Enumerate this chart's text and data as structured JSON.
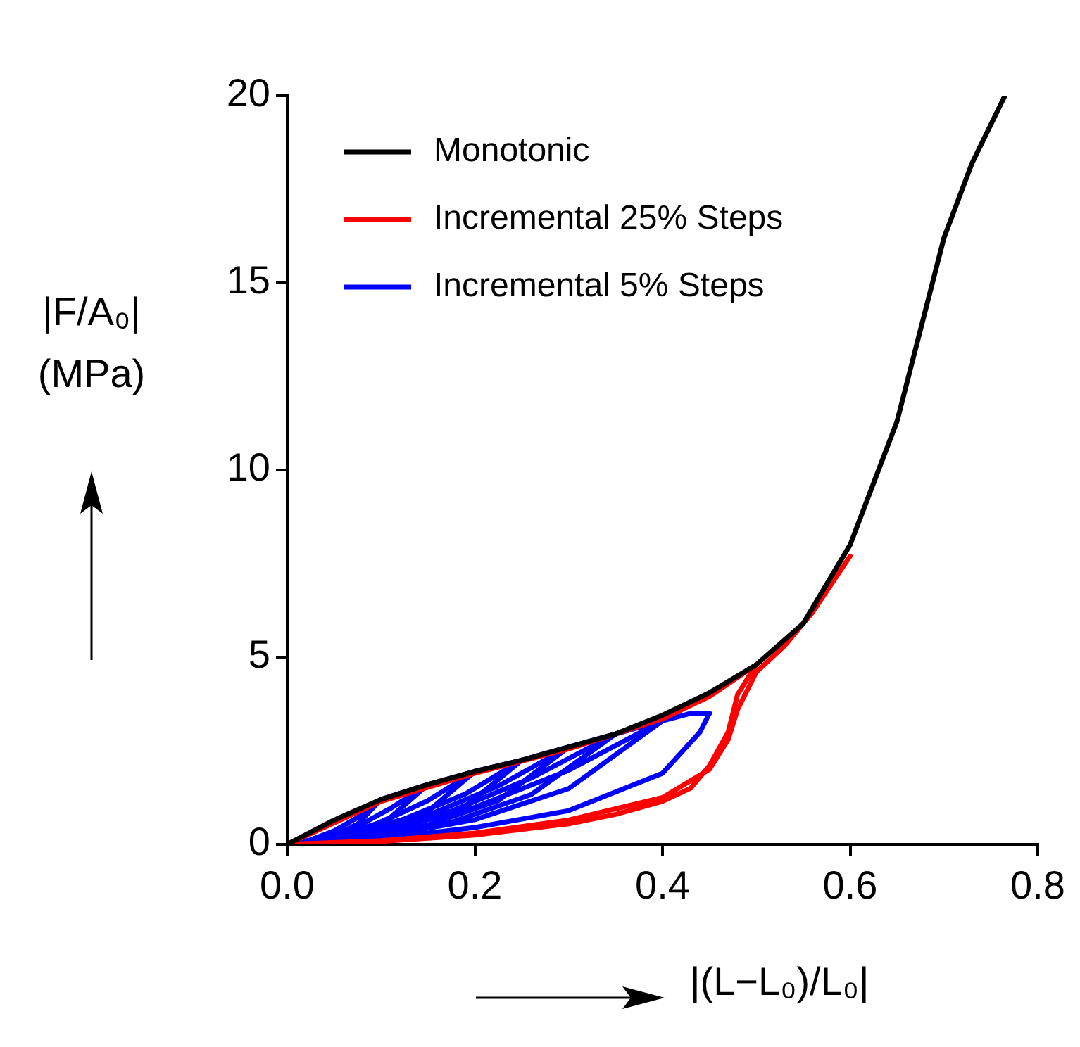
{
  "chart_data": {
    "type": "line",
    "xlabel": "|(L−L₀)/L₀|",
    "ylabel": "|F/A₀| (MPa)",
    "xlim": [
      0,
      0.8
    ],
    "ylim": [
      0,
      20
    ],
    "xticks": [
      {
        "value": 0,
        "label": "0.0"
      },
      0.2,
      0.4,
      0.6,
      0.8
    ],
    "yticks": [
      0,
      5,
      10,
      15,
      20
    ],
    "grid": false,
    "legend": "top left",
    "marker": "none",
    "line_style": "solid",
    "series": [
      {
        "name": "Monotonic",
        "color": "#000000",
        "x": [
          0,
          0.05,
          0.1,
          0.15,
          0.2,
          0.25,
          0.3,
          0.35,
          0.4,
          0.45,
          0.5,
          0.55,
          0.6,
          0.65,
          0.7,
          0.73,
          0.765
        ],
        "values": [
          0,
          0.65,
          1.2,
          1.6,
          1.95,
          2.25,
          2.6,
          2.95,
          3.45,
          4.05,
          4.8,
          5.9,
          8.0,
          11.3,
          16.2,
          18.2,
          20
        ]
      },
      {
        "name": "Incremental 25% Steps",
        "color": "#ff0000",
        "x": [
          0,
          0.1,
          0.2,
          0.3,
          0.4,
          0.45,
          0.5
        ],
        "values": [
          0,
          1.15,
          1.9,
          2.55,
          3.35,
          3.95,
          4.8
        ]
      },
      {
        "color": "#ff0000",
        "x": [
          0,
          0.1,
          0.2,
          0.3,
          0.35,
          0.4,
          0.43,
          0.45,
          0.47,
          0.48,
          0.5
        ],
        "values": [
          0,
          0.08,
          0.25,
          0.55,
          0.8,
          1.15,
          1.5,
          2.1,
          3.0,
          4.0,
          4.8
        ]
      },
      {
        "color": "#ff0000",
        "x": [
          0,
          0.1,
          0.2,
          0.3,
          0.4,
          0.45,
          0.47,
          0.48,
          0.5,
          0.53,
          0.56,
          0.6
        ],
        "values": [
          0,
          0.1,
          0.3,
          0.65,
          1.25,
          2.0,
          2.8,
          3.6,
          4.6,
          5.3,
          6.2,
          7.7
        ]
      },
      {
        "color": "#0000ff",
        "x": [
          0,
          0.025,
          0.05,
          0.075,
          0.1
        ],
        "values": [
          0,
          0.07,
          0.24,
          0.54,
          1.2
        ]
      },
      {
        "color": "#0000ff",
        "x": [
          0,
          0.025,
          0.05,
          0.075,
          0.1,
          0.15
        ],
        "values": [
          0,
          0.12,
          0.36,
          0.72,
          1.2,
          1.6
        ]
      },
      {
        "color": "#0000ff",
        "x": [
          0,
          0.04,
          0.075,
          0.11,
          0.15
        ],
        "values": [
          0,
          0.1,
          0.32,
          0.72,
          1.6
        ]
      },
      {
        "color": "#0000ff",
        "x": [
          0,
          0.04,
          0.075,
          0.11,
          0.15,
          0.2
        ],
        "values": [
          0,
          0.16,
          0.48,
          0.96,
          1.6,
          1.95
        ]
      },
      {
        "color": "#0000ff",
        "x": [
          0,
          0.05,
          0.1,
          0.15,
          0.2
        ],
        "values": [
          0,
          0.12,
          0.39,
          0.88,
          1.95
        ]
      },
      {
        "color": "#0000ff",
        "x": [
          0,
          0.05,
          0.1,
          0.15,
          0.2,
          0.25
        ],
        "values": [
          0,
          0.2,
          0.59,
          1.17,
          1.95,
          2.25
        ]
      },
      {
        "color": "#0000ff",
        "x": [
          0,
          0.06,
          0.125,
          0.19,
          0.25
        ],
        "values": [
          0,
          0.14,
          0.45,
          1.01,
          2.25
        ]
      },
      {
        "color": "#0000ff",
        "x": [
          0,
          0.06,
          0.125,
          0.19,
          0.25,
          0.3
        ],
        "values": [
          0,
          0.23,
          0.68,
          1.35,
          2.25,
          2.6
        ]
      },
      {
        "color": "#0000ff",
        "x": [
          0,
          0.075,
          0.15,
          0.225,
          0.3
        ],
        "values": [
          0,
          0.16,
          0.52,
          1.17,
          2.6
        ]
      },
      {
        "color": "#0000ff",
        "x": [
          0,
          0.075,
          0.15,
          0.225,
          0.3,
          0.35
        ],
        "values": [
          0,
          0.26,
          0.78,
          1.56,
          2.6,
          2.95
        ]
      },
      {
        "color": "#0000ff",
        "x": [
          0,
          0.09,
          0.175,
          0.26,
          0.35
        ],
        "values": [
          0,
          0.18,
          0.59,
          1.33,
          2.95
        ]
      },
      {
        "color": "#0000ff",
        "x": [
          0,
          0.09,
          0.175,
          0.26,
          0.35,
          0.4
        ],
        "values": [
          0,
          0.3,
          0.89,
          1.77,
          2.95,
          3.3
        ]
      },
      {
        "color": "#0000ff",
        "x": [
          0,
          0.1,
          0.2,
          0.3,
          0.4
        ],
        "values": [
          0,
          0.2,
          0.66,
          1.49,
          3.3
        ]
      },
      {
        "color": "#0000ff",
        "x": [
          0,
          0.1,
          0.2,
          0.3,
          0.4,
          0.43,
          0.45
        ],
        "values": [
          0,
          0.33,
          0.99,
          1.98,
          3.3,
          3.5,
          3.5
        ]
      },
      {
        "name": "Incremental 5% Steps",
        "color": "#0000ff",
        "x": [
          0,
          0.1,
          0.2,
          0.3,
          0.4,
          0.44,
          0.45
        ],
        "values": [
          0,
          0.15,
          0.45,
          0.9,
          1.9,
          3.0,
          3.5
        ]
      }
    ]
  }
}
